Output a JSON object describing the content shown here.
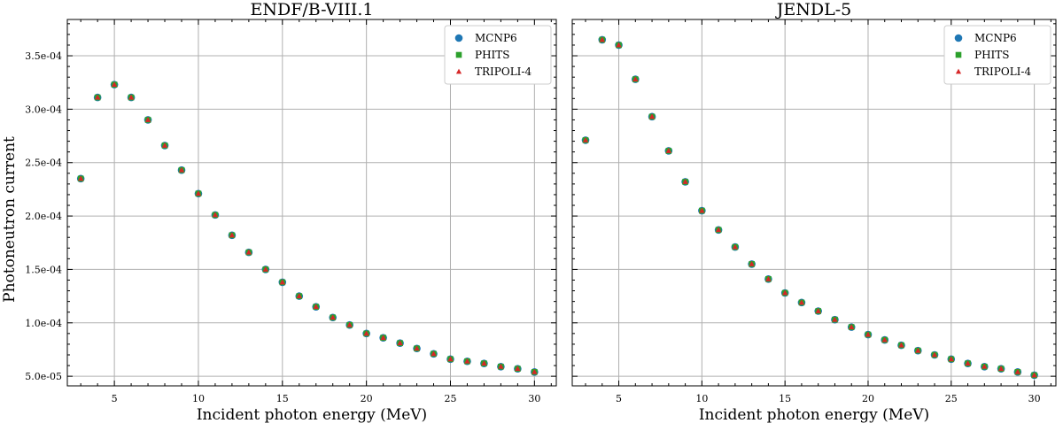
{
  "figure": {
    "ylabel": "Photoneutron current",
    "colors": {
      "MCNP6": "#1f77b4",
      "PHITS": "#2ca02c",
      "TRIPOLI-4": "#d62728"
    }
  },
  "chart_data": [
    {
      "type": "scatter",
      "title": "ENDF/B-VIII.1",
      "xlabel": "Incident photon energy (MeV)",
      "ylabel": "Photoneutron current",
      "xlim": [
        2.2,
        31.3
      ],
      "ylim": [
        4.1e-05,
        0.000384
      ],
      "xticks": [
        5,
        10,
        15,
        20,
        25,
        30
      ],
      "xtick_labels": [
        "5",
        "10",
        "15",
        "20",
        "25",
        "30"
      ],
      "yticks": [
        5e-05,
        0.0001,
        0.00015,
        0.0002,
        0.00025,
        0.0003,
        0.00035
      ],
      "ytick_labels": [
        "5.0e-05",
        "1.0e-04",
        "1.5e-04",
        "2.0e-04",
        "2.5e-04",
        "3.0e-04",
        "3.5e-04"
      ],
      "grid": true,
      "legend_position": "top-right",
      "x": [
        3,
        4,
        5,
        6,
        7,
        8,
        9,
        10,
        11,
        12,
        13,
        14,
        15,
        16,
        17,
        18,
        19,
        20,
        21,
        22,
        23,
        24,
        25,
        26,
        27,
        28,
        29,
        30
      ],
      "series": [
        {
          "name": "MCNP6",
          "marker": "circle",
          "values": [
            0.000235,
            0.000311,
            0.000323,
            0.000311,
            0.00029,
            0.000266,
            0.000243,
            0.000221,
            0.000201,
            0.000182,
            0.000166,
            0.00015,
            0.000138,
            0.000125,
            0.000115,
            0.000105,
            9.8e-05,
            9e-05,
            8.6e-05,
            8.1e-05,
            7.6e-05,
            7.1e-05,
            6.6e-05,
            6.4e-05,
            6.2e-05,
            5.9e-05,
            5.7e-05,
            5.4e-05
          ]
        },
        {
          "name": "PHITS",
          "marker": "square",
          "values": [
            0.000235,
            0.000311,
            0.000323,
            0.000311,
            0.00029,
            0.000266,
            0.000243,
            0.000221,
            0.000201,
            0.000182,
            0.000166,
            0.00015,
            0.000138,
            0.000125,
            0.000115,
            0.000105,
            9.8e-05,
            9e-05,
            8.6e-05,
            8.1e-05,
            7.6e-05,
            7.1e-05,
            6.6e-05,
            6.4e-05,
            6.2e-05,
            5.9e-05,
            5.7e-05,
            5.4e-05
          ]
        },
        {
          "name": "TRIPOLI-4",
          "marker": "triangle",
          "values": [
            0.000235,
            0.000311,
            0.000323,
            0.000311,
            0.00029,
            0.000266,
            0.000243,
            0.000221,
            0.000201,
            0.000182,
            0.000166,
            0.00015,
            0.000138,
            0.000125,
            0.000115,
            0.000105,
            9.8e-05,
            9e-05,
            8.6e-05,
            8.1e-05,
            7.6e-05,
            7.1e-05,
            6.6e-05,
            6.4e-05,
            6.2e-05,
            5.9e-05,
            5.7e-05,
            5.4e-05
          ]
        }
      ]
    },
    {
      "type": "scatter",
      "title": "JENDL-5",
      "xlabel": "Incident photon energy (MeV)",
      "ylabel": "",
      "xlim": [
        2.2,
        31.3
      ],
      "ylim": [
        4.1e-05,
        0.000384
      ],
      "xticks": [
        5,
        10,
        15,
        20,
        25,
        30
      ],
      "xtick_labels": [
        "5",
        "10",
        "15",
        "20",
        "25",
        "30"
      ],
      "yticks": [],
      "ytick_labels": [],
      "grid": true,
      "legend_position": "top-right",
      "x": [
        3,
        4,
        5,
        6,
        7,
        8,
        9,
        10,
        11,
        12,
        13,
        14,
        15,
        16,
        17,
        18,
        19,
        20,
        21,
        22,
        23,
        24,
        25,
        26,
        27,
        28,
        29,
        30
      ],
      "series": [
        {
          "name": "MCNP6",
          "marker": "circle",
          "values": [
            0.000271,
            0.000365,
            0.00036,
            0.000328,
            0.000293,
            0.000261,
            0.000232,
            0.000205,
            0.000187,
            0.000171,
            0.000155,
            0.000141,
            0.000128,
            0.000119,
            0.000111,
            0.000103,
            9.6e-05,
            8.9e-05,
            8.4e-05,
            7.9e-05,
            7.4e-05,
            7e-05,
            6.6e-05,
            6.2e-05,
            5.9e-05,
            5.7e-05,
            5.4e-05,
            5.1e-05
          ]
        },
        {
          "name": "PHITS",
          "marker": "square",
          "values": [
            0.000271,
            0.000365,
            0.00036,
            0.000328,
            0.000293,
            0.000261,
            0.000232,
            0.000205,
            0.000187,
            0.000171,
            0.000155,
            0.000141,
            0.000128,
            0.000119,
            0.000111,
            0.000103,
            9.6e-05,
            8.9e-05,
            8.4e-05,
            7.9e-05,
            7.4e-05,
            7e-05,
            6.6e-05,
            6.2e-05,
            5.9e-05,
            5.7e-05,
            5.4e-05,
            5.1e-05
          ]
        },
        {
          "name": "TRIPOLI-4",
          "marker": "triangle",
          "values": [
            0.000271,
            0.000365,
            0.00036,
            0.000328,
            0.000293,
            0.000261,
            0.000232,
            0.000205,
            0.000187,
            0.000171,
            0.000155,
            0.000141,
            0.000128,
            0.000119,
            0.000111,
            0.000103,
            9.6e-05,
            8.9e-05,
            8.4e-05,
            7.9e-05,
            7.4e-05,
            7e-05,
            6.6e-05,
            6.2e-05,
            5.9e-05,
            5.7e-05,
            5.4e-05,
            5.1e-05
          ]
        }
      ]
    }
  ]
}
